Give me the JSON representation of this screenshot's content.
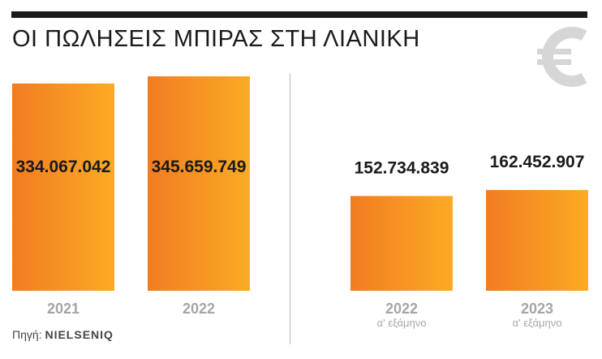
{
  "title": "ΟΙ ΠΩΛΗΣΕΙΣ ΜΠΙΡΑΣ ΣΤΗ ΛΙΑΝΙΚΗ",
  "source": {
    "label": "Πηγή:",
    "name": "NIELSENIQ"
  },
  "icon": "euro-icon",
  "colors": {
    "bar_start": "#f27c22",
    "bar_end": "#fbab24",
    "text": "#1a1a1a",
    "category": "#a6a6a6"
  },
  "chart_data": [
    {
      "type": "bar",
      "categories": [
        "2021",
        "2022"
      ],
      "values": [
        334067042,
        345659749
      ],
      "value_labels": [
        "334.067.042",
        "345.659.749"
      ],
      "ylim": [
        0,
        360000000
      ]
    },
    {
      "type": "bar",
      "categories": [
        "2022",
        "2023"
      ],
      "subcategories": [
        "α' εξάμηνο",
        "α' εξάμηνο"
      ],
      "values": [
        152734839,
        162452907
      ],
      "value_labels": [
        "152.734.839",
        "162.452.907"
      ],
      "ylim": [
        0,
        360000000
      ]
    }
  ]
}
